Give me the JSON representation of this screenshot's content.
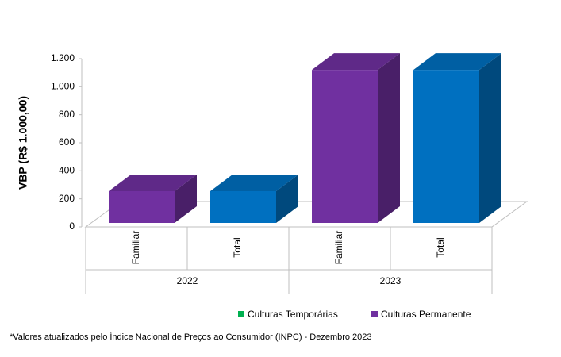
{
  "chart_data": {
    "type": "bar3d",
    "y_label": "VBP (R$ 1.000,00)",
    "categories": [
      "Familiar",
      "Total",
      "Familiar",
      "Total"
    ],
    "groups": [
      "2022",
      "2023"
    ],
    "series": [
      {
        "name": "Culturas Temporárias",
        "color": "#00b050",
        "values": [
          null,
          null,
          null,
          null
        ]
      },
      {
        "name": "Culturas Permanente",
        "color": "#7030a0",
        "values": [
          255,
          255,
          1120,
          1120
        ],
        "point_colors": [
          "#7030a0",
          "#0070c0",
          "#7030a0",
          "#0070c0"
        ]
      }
    ],
    "ylim": [
      0,
      1200
    ],
    "yticks": [
      0,
      200,
      400,
      600,
      800,
      {
        "value": 1000,
        "label": "1.000"
      },
      {
        "value": 1200,
        "label": "1.200"
      }
    ],
    "note": "*Valores atualizados pelo Índice Nacional de Preços ao Consumidor (INPC) - Dezembro 2023"
  }
}
